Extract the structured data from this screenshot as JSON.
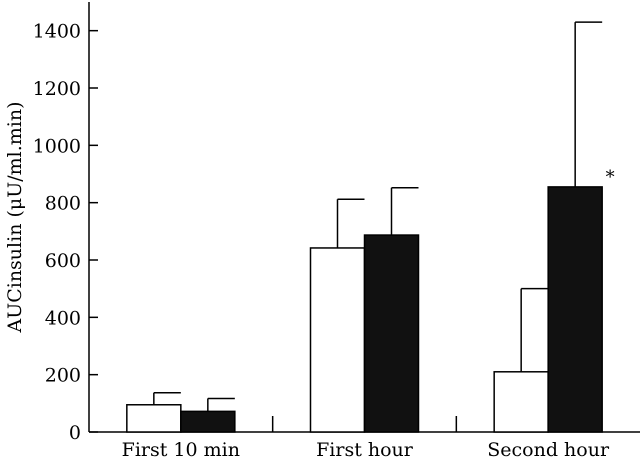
{
  "chart_data": {
    "type": "bar",
    "categories": [
      "First 10 min",
      "First hour",
      "Second hour"
    ],
    "series": [
      {
        "values": [
          95,
          642,
          210
        ],
        "errors": [
          42,
          170,
          290
        ],
        "color": "#ffffff"
      },
      {
        "values": [
          72,
          687,
          855
        ],
        "errors": [
          45,
          165,
          575
        ],
        "color": "#111111"
      }
    ],
    "ylabel": "AUCinsulin (μU/ml.min)",
    "xlabel": "",
    "ylim": [
      0,
      1500
    ],
    "yticks": [
      0,
      200,
      400,
      600,
      800,
      1000,
      1200,
      1400
    ],
    "annotations": [
      {
        "category": 2,
        "series": 1,
        "text": "*"
      }
    ],
    "grid": false,
    "legend": "none"
  }
}
